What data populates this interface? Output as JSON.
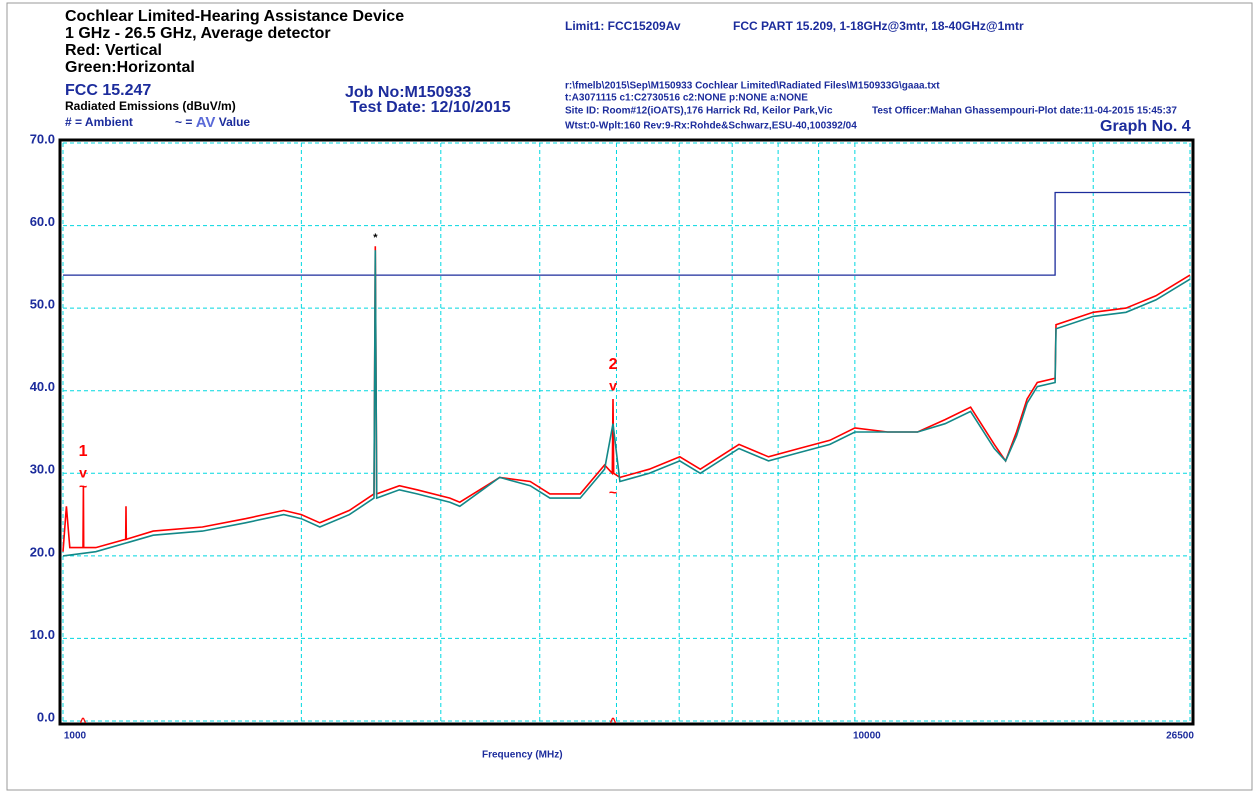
{
  "chart_data": {
    "type": "line",
    "title": "Cochlear Limited-Hearing Assistance Device",
    "subtitle": "1 GHz - 26.5 GHz, Average detector",
    "standard": "FCC 15.247",
    "y_label": "Radiated Emissions (dBuV/m)",
    "x_label": "Frequency (MHz)",
    "ambient_note": "# = Ambient",
    "av_note": [
      "~ = ",
      "AV",
      " Value"
    ],
    "job_no": "Job No:M150933",
    "test_date": "Test Date: 12/10/2015",
    "limit_description": "FCC PART 15.209, 1-18GHz@3mtr, 18-40GHz@1mtr",
    "info_lines": [
      "r:\\fmelb\\2015\\Sep\\M150933 Cochlear Limited\\Radiated Files\\M150933G\\gaaa.txt",
      "t:A3071115 c1:C2730516  c2:NONE p:NONE a:NONE",
      "Site ID: Room#12(iOATS),176 Harrick Rd, Keilor Park,Vic",
      "Wtst:0-Wplt:160 Rev:9-Rx:Rohde&Schwarz,ESU-40,100392/04"
    ],
    "test_officer": "Test Officer:Mahan Ghassempouri-Plot date:11-04-2015 15:45:37",
    "graph_no": "Graph No.  4",
    "log_x": true,
    "grid": true,
    "xlim": [
      1000,
      26500
    ],
    "xticks": [
      1000,
      10000,
      26500
    ],
    "xgrid": [
      2000,
      3000,
      4000,
      5000,
      6000,
      7000,
      8000,
      9000,
      20000
    ],
    "ylim": [
      0,
      70
    ],
    "yticks": [
      {
        "value": 0,
        "label": "0.0"
      },
      {
        "value": 10,
        "label": "10.0"
      },
      {
        "value": 20,
        "label": "20.0"
      },
      {
        "value": 30,
        "label": "30.0"
      },
      {
        "value": 40,
        "label": "40.0"
      },
      {
        "value": 50,
        "label": "50.0"
      },
      {
        "value": 60,
        "label": "60.0"
      },
      {
        "value": 70,
        "label": "70.0"
      }
    ],
    "series": [
      {
        "name": "Limit1: FCC15209Av",
        "color": "#1c2c9c",
        "x": [
          1000,
          17900,
          17900,
          26500
        ],
        "values": [
          54,
          54,
          64,
          64
        ]
      },
      {
        "name": "Red: Vertical",
        "color": "#ff0000",
        "x": [
          1000,
          1010,
          1020,
          1060,
          1061,
          1062,
          1100,
          1200,
          1201,
          1202,
          1300,
          1500,
          1700,
          1900,
          2000,
          2110,
          2300,
          2470,
          2480,
          2490,
          2660,
          2800,
          3080,
          3170,
          3560,
          3890,
          4120,
          4500,
          4830,
          4940,
          4950,
          4960,
          5050,
          5500,
          6010,
          6380,
          7140,
          7780,
          8500,
          9300,
          10000,
          11000,
          12000,
          13000,
          14000,
          15000,
          15500,
          16000,
          16500,
          17000,
          17900,
          17950,
          20000,
          22000,
          24000,
          26500
        ],
        "values": [
          20.5,
          26,
          21,
          21,
          28.5,
          21,
          21,
          22,
          26,
          22,
          23,
          23.5,
          24.5,
          25.5,
          25,
          24,
          25.5,
          27.5,
          57.5,
          27.5,
          28.5,
          28,
          27,
          26.5,
          29.5,
          29,
          27.5,
          27.5,
          31,
          30,
          39,
          30,
          29.5,
          30.5,
          32,
          30.5,
          33.5,
          32,
          33,
          34,
          35.5,
          35,
          35,
          36.5,
          38,
          33.5,
          31.5,
          35,
          39,
          41,
          41.5,
          48,
          49.5,
          50,
          51.5,
          54
        ]
      },
      {
        "name": "Green:Horizontal",
        "color": "#138888",
        "x": [
          1000,
          1100,
          1300,
          1500,
          1700,
          1900,
          2000,
          2110,
          2300,
          2470,
          2480,
          2490,
          2660,
          2800,
          3080,
          3170,
          3560,
          3890,
          4120,
          4500,
          4830,
          4950,
          5050,
          5500,
          6010,
          6380,
          7140,
          7780,
          8500,
          9300,
          10000,
          11000,
          12000,
          13000,
          14000,
          15000,
          15500,
          16000,
          16500,
          17000,
          17900,
          17950,
          20000,
          22000,
          24000,
          26500
        ],
        "values": [
          20,
          20.5,
          22.5,
          23,
          24,
          25,
          24.5,
          23.5,
          25,
          27,
          57,
          27,
          28,
          27.5,
          26.5,
          26,
          29.5,
          28.5,
          27,
          27,
          30.5,
          36,
          29,
          30,
          31.5,
          30,
          33,
          31.5,
          32.5,
          33.5,
          35,
          35,
          35,
          36,
          37.5,
          33,
          31.5,
          34.5,
          38.5,
          40.5,
          41,
          47.5,
          49,
          49.5,
          51,
          53.5
        ]
      }
    ],
    "markers": [
      {
        "label": "1",
        "x": 1060,
        "value": 28.5,
        "av_value": 28.3,
        "peak_symbol": "v",
        "av_symbol": "~",
        "foot_symbol": "^"
      },
      {
        "label": "2",
        "x": 4950,
        "value": 39,
        "av_value": 27.6,
        "peak_symbol": "v",
        "av_symbol": "~",
        "foot_symbol": "^"
      }
    ],
    "peak_note": {
      "label": "*",
      "x": 2480,
      "value": 57.5
    }
  }
}
